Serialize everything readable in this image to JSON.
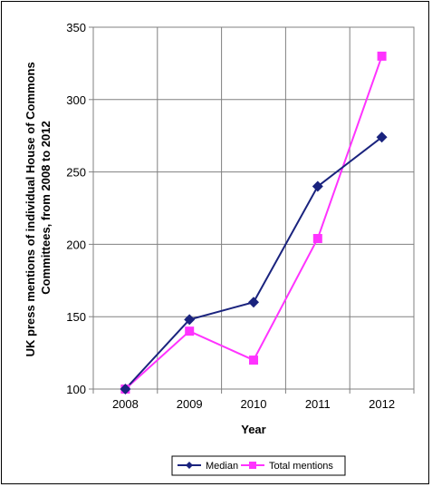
{
  "chart_data": {
    "type": "line",
    "categories": [
      "2008",
      "2009",
      "2010",
      "2011",
      "2012"
    ],
    "series": [
      {
        "name": "Median",
        "values": [
          100,
          148,
          160,
          240,
          274
        ],
        "color": "#1a237e",
        "marker": "diamond"
      },
      {
        "name": "Total mentions",
        "values": [
          100,
          140,
          120,
          204,
          330
        ],
        "color": "#ff33ff",
        "marker": "square"
      }
    ],
    "xlabel": "Year",
    "ylabel_lines": [
      "UK press mentions of individual House of Commons",
      "Committees,  from 2008 to 2012"
    ],
    "ylim": [
      100,
      350
    ],
    "yticks": [
      100,
      150,
      200,
      250,
      300,
      350
    ],
    "grid": true,
    "legend_position": "bottom-center"
  }
}
